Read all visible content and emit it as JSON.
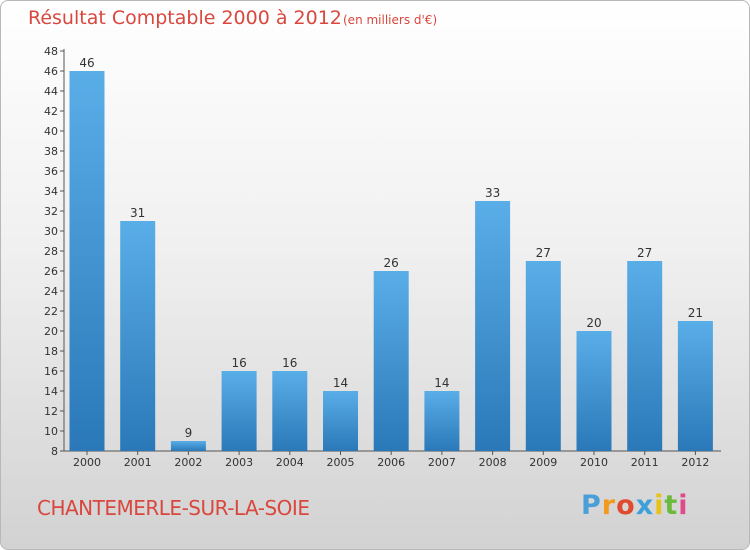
{
  "header": {
    "title": "Résultat Comptable 2000 à 2012",
    "subtitle": "(en milliers d'€)"
  },
  "footer": {
    "commune": "CHANTEMERLE-SUR-LA-SOIE",
    "logo_letters": [
      "P",
      "r",
      "o",
      "x",
      "i",
      "t",
      "i"
    ],
    "logo_colors": [
      "#4a9fd8",
      "#f39a1e",
      "#e04a2f",
      "#3fa0d9",
      "#e6c21a",
      "#6cba3c",
      "#e04a8a"
    ]
  },
  "colors": {
    "bar_top": "#5aaee8",
    "bar_bottom": "#2a78b8",
    "title": "#d9473e"
  },
  "chart_data": {
    "type": "bar",
    "title": "Résultat Comptable 2000 à 2012",
    "subtitle": "(en milliers d'€)",
    "categories": [
      "2000",
      "2001",
      "2002",
      "2003",
      "2004",
      "2005",
      "2006",
      "2007",
      "2008",
      "2009",
      "2010",
      "2011",
      "2012"
    ],
    "values": [
      46,
      31,
      9,
      16,
      16,
      14,
      26,
      14,
      33,
      27,
      20,
      27,
      21
    ],
    "ylim": [
      8,
      48
    ],
    "yticks": [
      8,
      10,
      12,
      14,
      16,
      18,
      20,
      22,
      24,
      26,
      28,
      30,
      32,
      34,
      36,
      38,
      40,
      42,
      44,
      46,
      48
    ],
    "grid": false,
    "data_labels": true
  }
}
